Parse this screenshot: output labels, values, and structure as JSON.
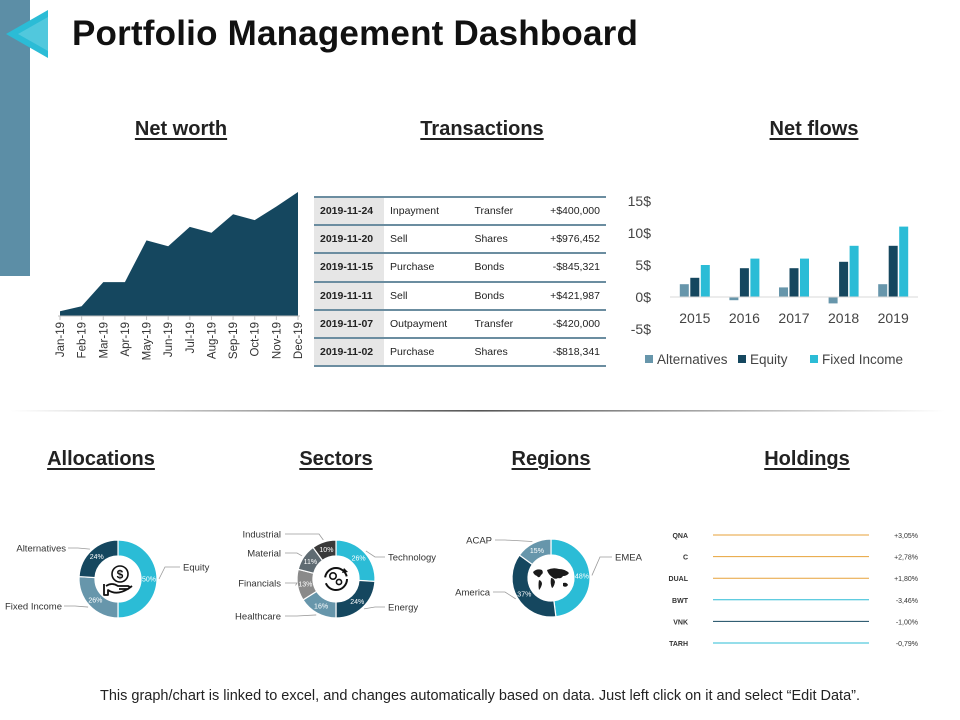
{
  "page": {
    "title": "Portfolio Management Dashboard",
    "footer": "This graph/chart is linked to excel, and changes automatically  based on data. Just left click on it and select “Edit Data”."
  },
  "sections": {
    "net_worth": "Net worth",
    "transactions": "Transactions",
    "net_flows": "Net flows",
    "allocations": "Allocations",
    "sectors": "Sectors",
    "regions": "Regions",
    "holdings": "Holdings"
  },
  "colors": {
    "navy": "#1d5470",
    "dark_navy": "#15475f",
    "teal": "#2bbcd6",
    "steel": "#6796ab",
    "gray": "#8a8a8a",
    "dark_gray": "#3a3a3a",
    "band": "#5c8ea6",
    "orange": "#e7a23a"
  },
  "chart_data": [
    {
      "id": "net_worth",
      "type": "area",
      "title": "Net worth",
      "categories": [
        "Jan-19",
        "Feb-19",
        "Mar-19",
        "Apr-19",
        "May-19",
        "Jun-19",
        "Jul-19",
        "Aug-19",
        "Sep-19",
        "Oct-19",
        "Nov-19",
        "Dec-19"
      ],
      "values": [
        5,
        10,
        35,
        35,
        78,
        72,
        92,
        86,
        105,
        99,
        113,
        128
      ],
      "ylim": [
        0,
        128
      ]
    },
    {
      "id": "transactions",
      "type": "table",
      "title": "Transactions",
      "rows": [
        [
          "2019-11-24",
          "Inpayment",
          "Transfer",
          "+$400,000"
        ],
        [
          "2019-11-20",
          "Sell",
          "Shares",
          "+$976,452"
        ],
        [
          "2019-11-15",
          "Purchase",
          "Bonds",
          "-$845,321"
        ],
        [
          "2019-11-11",
          "Sell",
          "Bonds",
          "+$421,987"
        ],
        [
          "2019-11-07",
          "Outpayment",
          "Transfer",
          "-$420,000"
        ],
        [
          "2019-11-02",
          "Purchase",
          "Shares",
          "-$818,341"
        ]
      ]
    },
    {
      "id": "net_flows",
      "type": "bar",
      "title": "Net flows",
      "categories": [
        "2015",
        "2016",
        "2017",
        "2018",
        "2019"
      ],
      "series": [
        {
          "name": "Alternatives",
          "values": [
            2,
            -0.5,
            1.5,
            -1,
            2
          ]
        },
        {
          "name": "Equity",
          "values": [
            3,
            4.5,
            4.5,
            5.5,
            8
          ]
        },
        {
          "name": "Fixed Income",
          "values": [
            5,
            6,
            6,
            8,
            11
          ]
        }
      ],
      "yticks": [
        "15$",
        "10$",
        "5$",
        "0$",
        "-5$"
      ],
      "ylim": [
        -5,
        15
      ],
      "legend": "bottom"
    },
    {
      "id": "allocations",
      "type": "pie",
      "title": "Allocations",
      "slices": [
        {
          "label": "Equity",
          "pct": "50%",
          "value": 50
        },
        {
          "label": "Fixed Income",
          "pct": "26%",
          "value": 26
        },
        {
          "label": "Alternatives",
          "pct": "24%",
          "value": 24
        }
      ]
    },
    {
      "id": "sectors",
      "type": "pie",
      "title": "Sectors",
      "slices": [
        {
          "label": "Technology",
          "pct": "26%",
          "value": 26
        },
        {
          "label": "Energy",
          "pct": "24%",
          "value": 24
        },
        {
          "label": "Healthcare",
          "pct": "16%",
          "value": 16
        },
        {
          "label": "Financials",
          "pct": "13%",
          "value": 13
        },
        {
          "label": "Material",
          "pct": "11%",
          "value": 11
        },
        {
          "label": "Industrial",
          "pct": "10%",
          "value": 10
        }
      ]
    },
    {
      "id": "regions",
      "type": "pie",
      "title": "Regions",
      "slices": [
        {
          "label": "EMEA",
          "pct": "48%",
          "value": 48
        },
        {
          "label": "America",
          "pct": "37%",
          "value": 37
        },
        {
          "label": "ACAP",
          "pct": "15%",
          "value": 15
        }
      ]
    },
    {
      "id": "holdings",
      "type": "table",
      "title": "Holdings",
      "rows": [
        {
          "name": "QNA",
          "change": "+3,05%",
          "value": 3.05
        },
        {
          "name": "C",
          "change": "+2,78%",
          "value": 2.78
        },
        {
          "name": "DUAL",
          "change": "+1,80%",
          "value": 1.8
        },
        {
          "name": "BWT",
          "change": "-3,46%",
          "value": -3.46
        },
        {
          "name": "VNK",
          "change": "-1,00%",
          "value": -1.0
        },
        {
          "name": "TARH",
          "change": "-0,79%",
          "value": -0.79
        }
      ]
    }
  ]
}
